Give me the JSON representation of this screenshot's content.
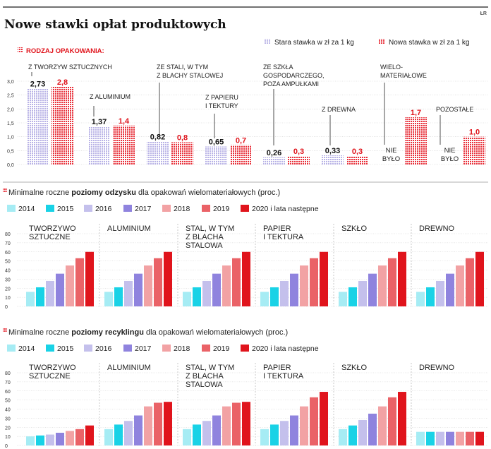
{
  "source_tag": "ŁR",
  "title": "Nowe stawki opłat produktowych",
  "colors": {
    "old": "#b9b3e6",
    "new": "#e8323c",
    "y2014": "#a6ecf4",
    "y2015": "#19d2e6",
    "y2016": "#c4c0ec",
    "y2017": "#8f83de",
    "y2018": "#f2a2a4",
    "y2019": "#ea6267",
    "y2020": "#e0141c",
    "grid": "#cfcfcf",
    "red_text": "#e0141c"
  },
  "top": {
    "section_label": "RODZAJ OPAKOWANIA:",
    "legend": {
      "old": "Stara stawka w zł za 1 kg",
      "new": "Nowa stawka w zł za 1 kg"
    },
    "no_data_label_1": "NIE",
    "no_data_label_2": "BYŁO"
  },
  "rates_section": {
    "title": "Minimalne roczne poziomy odzysku dla opakowań wielomateriałowych (proc.)",
    "title_pre": "Minimalne roczne ",
    "title_bold": "poziomy odzysku",
    "title_post": " dla opakowań wielomateriałowych (proc.)"
  },
  "recycling_section": {
    "title": "Minimalne roczne poziomy recyklingu dla opakowań wielomateriałowych (proc.)",
    "title_pre": "Minimalne roczne ",
    "title_bold": "poziomy recyklingu",
    "title_post": " dla opakowań wielomateriałowych (proc.)"
  },
  "years": [
    "2014",
    "2015",
    "2016",
    "2017",
    "2018",
    "2019",
    "2020 i lata następne"
  ],
  "chart_data": [
    {
      "type": "bar",
      "title": "Nowe stawki opłat produktowych",
      "categories": [
        [
          "Z TWORZYW SZTUCZNYCH"
        ],
        [
          "Z ALUMINIUM"
        ],
        [
          "ZE STALI, W TYM",
          "Z BLACHY STALOWEJ"
        ],
        [
          "Z PAPIERU",
          "I TEKTURY"
        ],
        [
          "ZE SZKŁA",
          "GOSPODARCZEGO,",
          "POZA AMPUŁKAMI"
        ],
        [
          "Z DREWNA"
        ],
        [
          "WIELO-",
          "MATERIAŁOWE"
        ],
        [
          "POZOSTAŁE"
        ]
      ],
      "series": [
        {
          "name": "Stara stawka w zł za 1 kg",
          "values": [
            2.73,
            1.37,
            0.82,
            0.65,
            0.26,
            0.33,
            null,
            null
          ],
          "labels": [
            "2,73",
            "1,37",
            "0,82",
            "0,65",
            "0,26",
            "0,33",
            "",
            ""
          ]
        },
        {
          "name": "Nowa stawka w zł za 1 kg",
          "values": [
            2.8,
            1.4,
            0.8,
            0.7,
            0.3,
            0.3,
            1.7,
            1.0
          ],
          "labels": [
            "2,8",
            "1,4",
            "0,8",
            "0,7",
            "0,3",
            "0,3",
            "1,7",
            "1,0"
          ]
        }
      ],
      "ylim": [
        0,
        3.0
      ],
      "yticks": [
        "0,0",
        "0,5",
        "1,0",
        "1,5",
        "2,0",
        "2,5",
        "3,0"
      ],
      "ytick_values": [
        0,
        0.5,
        1.0,
        1.5,
        2.0,
        2.5,
        3.0
      ]
    },
    {
      "type": "bar",
      "title": "Minimalne roczne poziomy odzysku dla opakowań wielomateriałowych (proc.)",
      "categories": [
        [
          "TWORZYWO",
          "SZTUCZNE"
        ],
        [
          "ALUMINIUM"
        ],
        [
          "STAL, W TYM",
          "Z BLACHA",
          "STALOWA"
        ],
        [
          "PAPIER",
          "I TEKTURA"
        ],
        [
          "SZKŁO"
        ],
        [
          "DREWNO"
        ]
      ],
      "series_names": [
        "2014",
        "2015",
        "2016",
        "2017",
        "2018",
        "2019",
        "2020 i lata następne"
      ],
      "values": [
        [
          16,
          21,
          28,
          36,
          45,
          53,
          60
        ],
        [
          16,
          21,
          28,
          36,
          45,
          53,
          60
        ],
        [
          16,
          21,
          28,
          36,
          45,
          53,
          60
        ],
        [
          16,
          21,
          28,
          36,
          45,
          53,
          60
        ],
        [
          16,
          21,
          28,
          36,
          45,
          53,
          60
        ],
        [
          16,
          21,
          28,
          36,
          45,
          53,
          60
        ]
      ],
      "ylim": [
        0,
        80
      ],
      "yticks": [
        "0",
        "10",
        "20",
        "30",
        "40",
        "50",
        "60",
        "70",
        "80"
      ],
      "ytick_values": [
        0,
        10,
        20,
        30,
        40,
        50,
        60,
        70,
        80
      ]
    },
    {
      "type": "bar",
      "title": "Minimalne roczne poziomy recyklingu dla opakowań wielomateriałowych (proc.)",
      "categories": [
        [
          "TWORZYWO",
          "SZTUCZNE"
        ],
        [
          "ALUMINIUM"
        ],
        [
          "STAL, W TYM",
          "Z BLACHA",
          "STALOWA"
        ],
        [
          "PAPIER",
          "I TEKTURA"
        ],
        [
          "SZKŁO"
        ],
        [
          "DREWNO"
        ]
      ],
      "series_names": [
        "2014",
        "2015",
        "2016",
        "2017",
        "2018",
        "2019",
        "2020 i lata następne"
      ],
      "values": [
        [
          10,
          11,
          12,
          14,
          16,
          18,
          22
        ],
        [
          18,
          23,
          27,
          33,
          43,
          47,
          48
        ],
        [
          18,
          23,
          27,
          33,
          43,
          47,
          48
        ],
        [
          18,
          23,
          27,
          33,
          43,
          53,
          59
        ],
        [
          18,
          22,
          28,
          35,
          43,
          53,
          59
        ],
        [
          15,
          15,
          15,
          15,
          15,
          15,
          15
        ]
      ],
      "ylim": [
        0,
        80
      ],
      "yticks": [
        "0",
        "10",
        "20",
        "30",
        "40",
        "50",
        "60",
        "70",
        "80"
      ],
      "ytick_values": [
        0,
        10,
        20,
        30,
        40,
        50,
        60,
        70,
        80
      ]
    }
  ]
}
